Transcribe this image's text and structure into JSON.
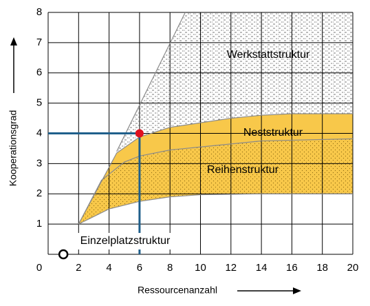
{
  "chart_data": {
    "type": "region",
    "xlabel": "Ressourcenanzahl",
    "ylabel": "Kooperationsgrad",
    "xlim": [
      0,
      20
    ],
    "ylim": [
      0,
      8
    ],
    "xticks": [
      0,
      2,
      4,
      6,
      8,
      10,
      12,
      14,
      16,
      18,
      20
    ],
    "yticks": [
      1,
      2,
      3,
      4,
      5,
      6,
      7,
      8
    ],
    "grid": true,
    "curves": {
      "upper": {
        "x": [
          2,
          4.5,
          6,
          8,
          10,
          12,
          14,
          16,
          20
        ],
        "y": [
          1,
          3.35,
          3.88,
          4.2,
          4.35,
          4.5,
          4.6,
          4.65,
          4.65
        ]
      },
      "middle": {
        "x": [
          2,
          3.5,
          5,
          6,
          8,
          10,
          14,
          20
        ],
        "y": [
          1,
          2.45,
          3.05,
          3.25,
          3.45,
          3.55,
          3.75,
          3.82
        ]
      },
      "lower": {
        "x": [
          2,
          4,
          6,
          8,
          10,
          14,
          20
        ],
        "y": [
          1,
          1.5,
          1.75,
          1.9,
          1.97,
          2.0,
          2.0
        ]
      },
      "edge": {
        "x": [
          4.5,
          9
        ],
        "y": [
          3.4,
          8
        ]
      }
    },
    "regions": [
      {
        "name": "Werkstattstruktur",
        "color": "#ffffff"
      },
      {
        "name": "Neststruktur",
        "color": "#f8c84a"
      },
      {
        "name": "Reihenstruktur",
        "color": "#f8c84a"
      },
      {
        "name": "Einzelplatzstruktur",
        "color": "#ffffff"
      }
    ],
    "highlight": {
      "x": 6,
      "y": 4,
      "color": "#e0101f",
      "line_color": "#1f5f8b"
    },
    "origin_point": {
      "x": 1,
      "y": 0
    }
  }
}
